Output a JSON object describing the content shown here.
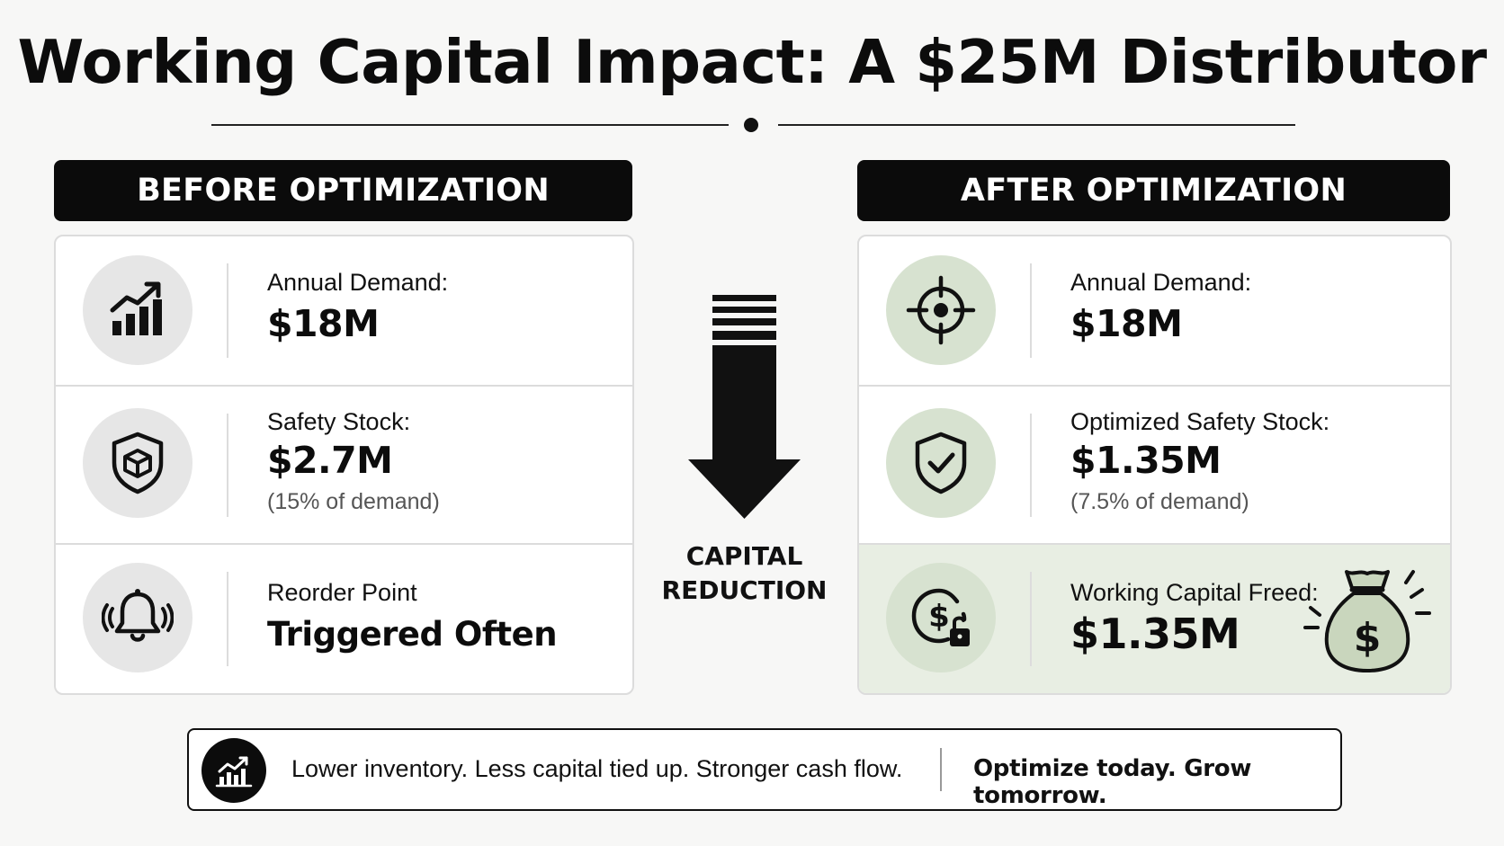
{
  "title": "Working Capital Impact: A $25M Distributor",
  "before": {
    "header": "BEFORE OPTIMIZATION",
    "rows": [
      {
        "icon": "bar-chart-growth-icon",
        "label": "Annual Demand:",
        "value": "$18M"
      },
      {
        "icon": "shield-box-icon",
        "label": "Safety Stock:",
        "value": "$2.7M",
        "note": "(15% of demand)"
      },
      {
        "icon": "bell-alert-icon",
        "label": "Reorder Point",
        "value": "Triggered Often"
      }
    ]
  },
  "center": {
    "icon": "down-arrow-icon",
    "label_line1": "CAPITAL",
    "label_line2": "REDUCTION"
  },
  "after": {
    "header": "AFTER OPTIMIZATION",
    "rows": [
      {
        "icon": "target-crosshair-icon",
        "label": "Annual Demand:",
        "value": "$18M"
      },
      {
        "icon": "shield-check-icon",
        "label": "Optimized Safety Stock:",
        "value": "$1.35M",
        "note": "(7.5% of demand)"
      },
      {
        "icon": "dollar-unlock-icon",
        "label": "Working Capital Freed:",
        "value": "$1.35M",
        "highlight": true,
        "extra_icon": "money-bag-icon"
      }
    ]
  },
  "footer": {
    "icon": "trend-chart-icon",
    "text": "Lower inventory. Less capital tied up. Stronger cash flow.",
    "cta": "Optimize today. Grow tomorrow."
  },
  "colors": {
    "header_bg": "#0b0b0b",
    "highlight_bg": "#e8eee3",
    "green_circle": "#d7e2d0",
    "money_bag": "#c9d6bd"
  }
}
